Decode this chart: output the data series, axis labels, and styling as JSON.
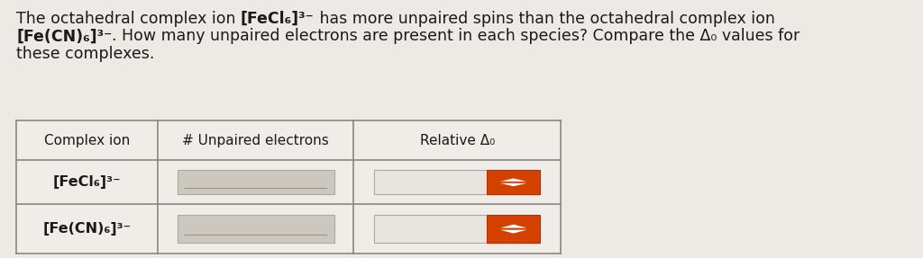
{
  "background_color": "#edeae5",
  "text_color": "#1a1a1a",
  "col_headers": [
    "Complex ion",
    "# Unpaired electrons",
    "Relative Δ₀"
  ],
  "row1_label": "[FeCl₆]³⁻",
  "row2_label": "[Fe(CN)₆]³⁻",
  "spinner_color": "#d44000",
  "spinner_border": "#b83000",
  "cell_input_bg": "#ccc8c0",
  "cell_input_border": "#aaa8a0",
  "spinner_box_bg": "#e8e4de",
  "spinner_box_border": "#aaa8a0",
  "table_border_color": "#888885",
  "table_bg": "#f0ede8",
  "line1_normal1": "The octahedral complex ion ",
  "line1_bold": "[FeCl₆]³⁻",
  "line1_normal2": " has more unpaired spins than the octahedral complex ion",
  "line2_bold": "[Fe(CN)₆]³⁻",
  "line2_normal": ". How many unpaired electrons are present in each species? Compare the Δ₀ values for",
  "line3": "these complexes.",
  "fontsize_text": 12.5,
  "fontsize_table": 11
}
